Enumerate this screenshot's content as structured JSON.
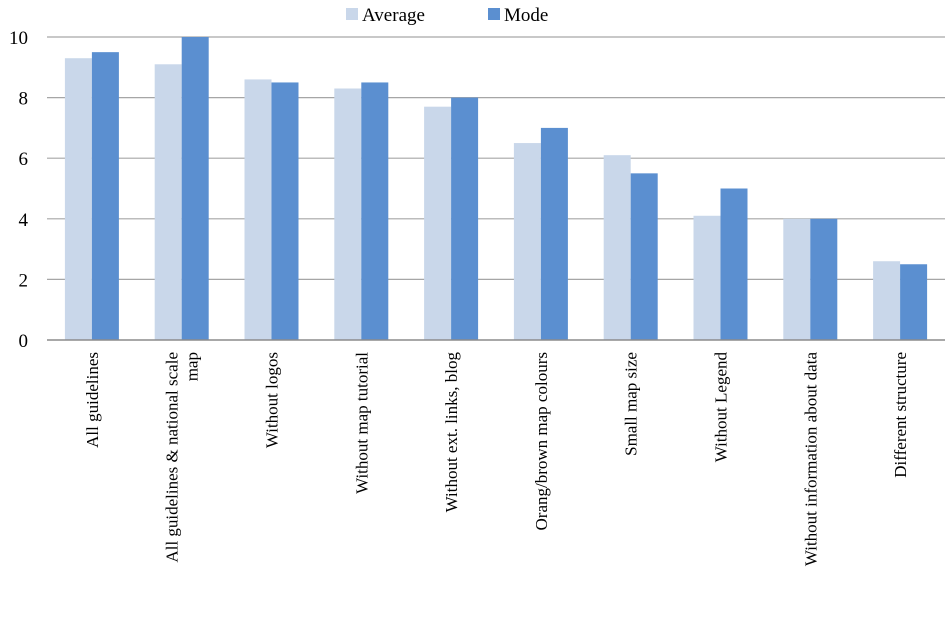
{
  "chart_data": {
    "type": "bar",
    "categories": [
      [
        "All guidelines"
      ],
      [
        "All guidelines & national scale",
        "map"
      ],
      [
        "Without logos"
      ],
      [
        "Without map tutorial"
      ],
      [
        "Without ext. links, blog"
      ],
      [
        "Orang/brown map colours"
      ],
      [
        "Small map size"
      ],
      [
        "Without Legend"
      ],
      [
        "Without information about data"
      ],
      [
        "Different structure"
      ]
    ],
    "series": [
      {
        "name": "Average",
        "color": "#c9d7ea",
        "values": [
          9.3,
          9.1,
          8.6,
          8.3,
          7.7,
          6.5,
          6.1,
          4.1,
          4.0,
          2.6
        ]
      },
      {
        "name": "Mode",
        "color": "#5b8fd0",
        "values": [
          9.5,
          10,
          8.5,
          8.5,
          8.0,
          7.0,
          5.5,
          5.0,
          4.0,
          2.5
        ]
      }
    ],
    "yticks": [
      "0",
      "2",
      "4",
      "6",
      "8",
      "10"
    ],
    "ylim": [
      0,
      10
    ],
    "grid": true,
    "legend": "top-center"
  }
}
